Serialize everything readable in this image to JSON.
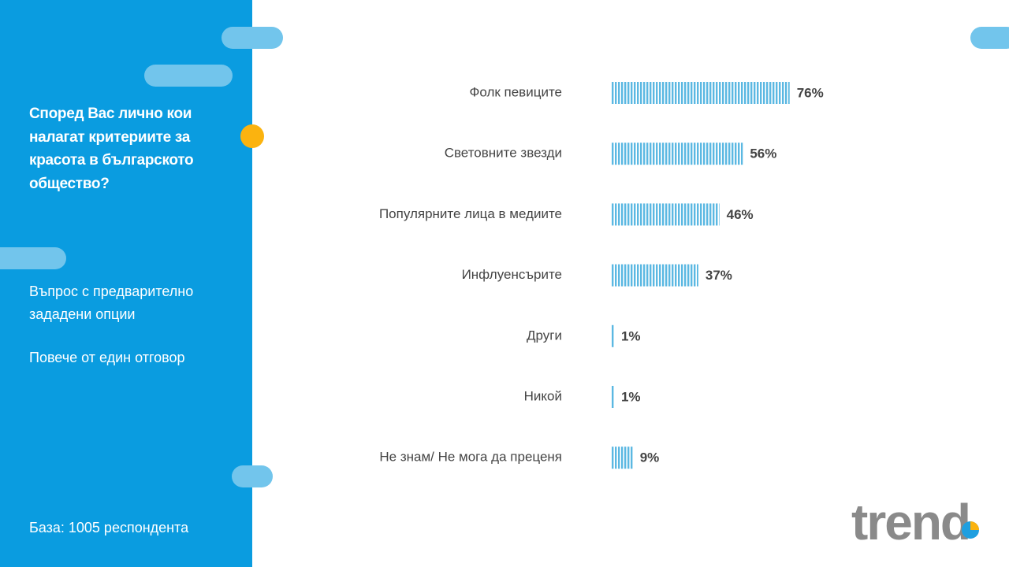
{
  "chart_data": {
    "type": "hbar",
    "title": "Според Вас лично кои налагат критериите за красота в българското общество?",
    "subtitle": [
      "Въпрос с предварително зададени опции",
      "Повече от един отговор"
    ],
    "base": "База: 1005 респондента",
    "logo": "trend",
    "categories": [
      "Фолк певиците",
      "Световните звезди",
      "Популярните лица в медиите",
      "Инфлуенсърите",
      "Други",
      "Никой",
      "Не знам/ Не мога да преценя"
    ],
    "values": [
      76,
      56,
      46,
      37,
      1,
      1,
      9
    ],
    "value_labels": [
      "76%",
      "56%",
      "46%",
      "37%",
      "1%",
      "1%",
      "9%"
    ],
    "color": "#5bb8e2"
  }
}
